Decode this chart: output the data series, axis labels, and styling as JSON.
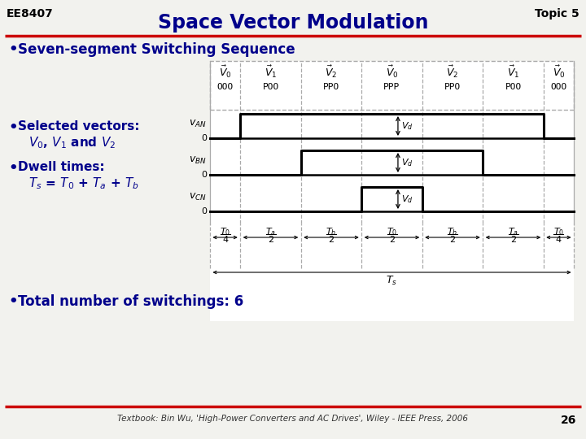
{
  "bg_color": "#f2f2ee",
  "diagram_bg": "#ffffff",
  "title": "Space Vector Modulation",
  "title_color": "#00008B",
  "header_left": "EE8407",
  "header_right": "Topic 5",
  "header_color": "#000000",
  "red_line_color": "#CC0000",
  "bullet_color": "#00008B",
  "bullet1": "Seven-segment Switching Sequence",
  "bullet4": "Total number of switchings: 6",
  "footer": "Textbook: Bin Wu, 'High-Power Converters and AC Drives', Wiley - IEEE Press, 2006",
  "page_num": "26",
  "segment_labels": [
    "OOO",
    "POO",
    "PPO",
    "PPP",
    "PPO",
    "POO",
    "OOO"
  ],
  "seg_widths": [
    1,
    2,
    2,
    2,
    2,
    2,
    1
  ],
  "waveform_color": "#000000",
  "dashed_color": "#aaaaaa"
}
